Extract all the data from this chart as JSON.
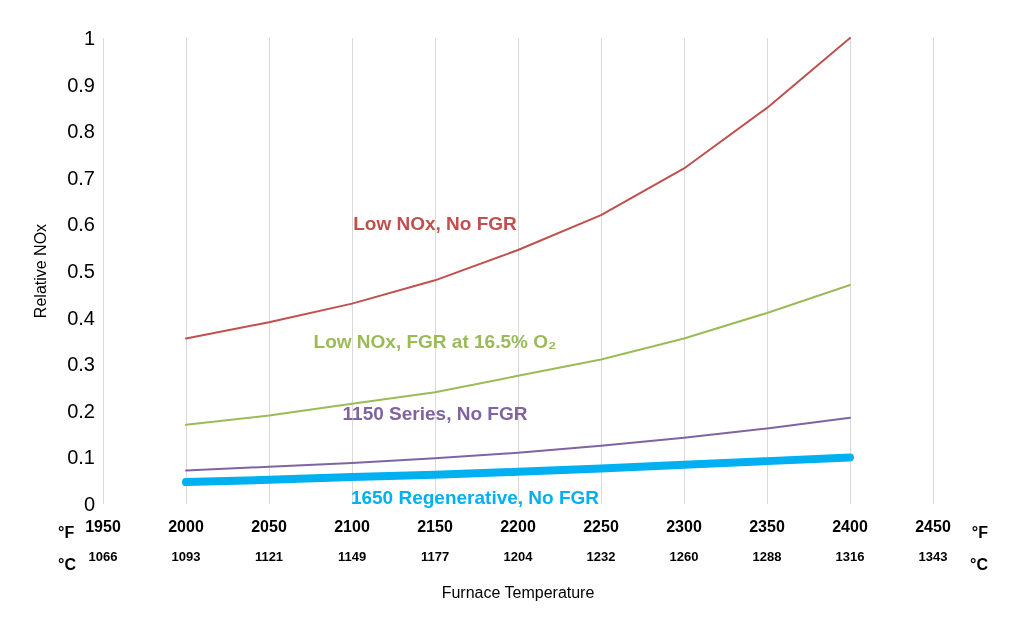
{
  "chart_data": {
    "type": "line",
    "xlabel": "Furnace Temperature",
    "ylabel": "Relative NOx",
    "x": [
      2000,
      2050,
      2100,
      2150,
      2200,
      2250,
      2300,
      2350,
      2400
    ],
    "series": [
      {
        "name": "Low NOx, No FGR",
        "color": "#c0504d",
        "values": [
          0.355,
          0.39,
          0.43,
          0.48,
          0.545,
          0.62,
          0.72,
          0.85,
          1.0
        ]
      },
      {
        "name": "Low NOx, FGR at 16.5% O₂",
        "color": "#9bbb59",
        "values": [
          0.17,
          0.19,
          0.215,
          0.24,
          0.275,
          0.31,
          0.355,
          0.41,
          0.47
        ]
      },
      {
        "name": "1150 Series, No FGR",
        "color": "#8064a2",
        "values": [
          0.072,
          0.08,
          0.088,
          0.098,
          0.11,
          0.125,
          0.142,
          0.162,
          0.185
        ]
      },
      {
        "name": "1650 Regenerative, No FGR",
        "color": "#00b0f0",
        "values": [
          0.047,
          0.052,
          0.058,
          0.063,
          0.069,
          0.076,
          0.084,
          0.092,
          0.1
        ]
      }
    ],
    "xlim": [
      1950,
      2450
    ],
    "xticks": [
      1950,
      2000,
      2050,
      2100,
      2150,
      2200,
      2250,
      2300,
      2350,
      2400,
      2450
    ],
    "x2lim": [
      1065.56,
      1343.33
    ],
    "x2ticks": [
      {
        "value": 1065.56,
        "label": "1066"
      },
      {
        "value": 1093.33,
        "label": "1093"
      },
      {
        "value": 1121.11,
        "label": "1121"
      },
      {
        "value": 1148.89,
        "label": "1149"
      },
      {
        "value": 1176.67,
        "label": "1177"
      },
      {
        "value": 1204.44,
        "label": "1204"
      },
      {
        "value": 1232.22,
        "label": "1232"
      },
      {
        "value": 1260,
        "label": "1260"
      },
      {
        "value": 1287.78,
        "label": "1288"
      },
      {
        "value": 1315.56,
        "label": "1316"
      },
      {
        "value": 1343.33,
        "label": "1343"
      }
    ],
    "ylim": [
      0,
      1
    ],
    "yticks": [
      0,
      0.1,
      0.2,
      0.3,
      0.4,
      0.5,
      0.6,
      0.7,
      0.8,
      0.9,
      1
    ],
    "annotations": [
      "°F",
      "°C"
    ],
    "grid": "x",
    "legend": false,
    "marker": "none",
    "line_style": "solid"
  }
}
